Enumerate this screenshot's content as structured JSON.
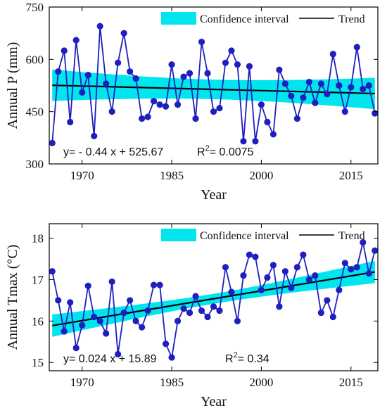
{
  "colors": {
    "series": "#1f1fbf",
    "confidence": "#00e5ee",
    "trend": "#000000"
  },
  "chart_data": [
    {
      "type": "line",
      "title": "",
      "xlabel": "Year",
      "ylabel": "Annual P (mm)",
      "xlim": [
        1964.5,
        2019.5
      ],
      "ylim": [
        300,
        750
      ],
      "xticks": [
        1970,
        1985,
        2000,
        2015
      ],
      "yticks": [
        300,
        450,
        600,
        750
      ],
      "grid": false,
      "legend_position": "top-right",
      "legend": {
        "confidence_label": "Confidence interval",
        "trend_label": "Trend"
      },
      "equation": "y= - 0.44 x + 525.67",
      "r2_label": "R",
      "r2_sup": "2",
      "r2_value": "= 0.0075",
      "trend": {
        "slope": -0.44,
        "intercept": 525.67,
        "x0": 1965
      },
      "ci_half_width": {
        "center": 28,
        "ends": 45
      },
      "series": [
        {
          "x": [
            1965,
            1966,
            1967,
            1968,
            1969,
            1970,
            1971,
            1972,
            1973,
            1974,
            1975,
            1976,
            1977,
            1978,
            1979,
            1980,
            1981,
            1982,
            1983,
            1984,
            1985,
            1986,
            1987,
            1988,
            1989,
            1990,
            1991,
            1992,
            1993,
            1994,
            1995,
            1996,
            1997,
            1998,
            1999,
            2000,
            2001,
            2002,
            2003,
            2004,
            2005,
            2006,
            2007,
            2008,
            2009,
            2010,
            2011,
            2012,
            2013,
            2014,
            2015,
            2016,
            2017,
            2018,
            2019
          ],
          "values": [
            360,
            565,
            625,
            420,
            655,
            505,
            555,
            380,
            695,
            530,
            450,
            590,
            675,
            565,
            545,
            430,
            435,
            480,
            470,
            465,
            585,
            470,
            550,
            560,
            430,
            650,
            560,
            450,
            460,
            590,
            625,
            585,
            365,
            580,
            365,
            470,
            420,
            385,
            570,
            530,
            495,
            430,
            490,
            535,
            475,
            530,
            500,
            615,
            525,
            450,
            520,
            635,
            515,
            525,
            445
          ]
        }
      ]
    },
    {
      "type": "line",
      "title": "",
      "xlabel": "Year",
      "ylabel": "Annual Tmax (°C)",
      "xlim": [
        1964.5,
        2019.5
      ],
      "ylim": [
        14.8,
        18.35
      ],
      "xticks": [
        1970,
        1985,
        2000,
        2015
      ],
      "yticks": [
        15,
        16,
        17,
        18
      ],
      "grid": false,
      "legend_position": "top-right",
      "legend": {
        "confidence_label": "Confidence interval",
        "trend_label": "Trend"
      },
      "equation": "y= 0.024 x + 15.89",
      "r2_label": "R",
      "r2_sup": "2",
      "r2_value": "= 0.34",
      "trend": {
        "slope": 0.024,
        "intercept": 15.89,
        "x0": 1965
      },
      "ci_half_width": {
        "center": 0.12,
        "ends": 0.27
      },
      "series": [
        {
          "x": [
            1965,
            1966,
            1967,
            1968,
            1969,
            1970,
            1971,
            1972,
            1973,
            1974,
            1975,
            1976,
            1977,
            1978,
            1979,
            1980,
            1981,
            1982,
            1983,
            1984,
            1985,
            1986,
            1987,
            1988,
            1989,
            1990,
            1991,
            1992,
            1993,
            1994,
            1995,
            1996,
            1997,
            1998,
            1999,
            2000,
            2001,
            2002,
            2003,
            2004,
            2005,
            2006,
            2007,
            2008,
            2009,
            2010,
            2011,
            2012,
            2013,
            2014,
            2015,
            2016,
            2017,
            2018,
            2019
          ],
          "values": [
            17.2,
            16.5,
            15.75,
            16.45,
            15.35,
            15.9,
            16.85,
            16.1,
            16.0,
            15.7,
            16.95,
            15.2,
            16.2,
            16.5,
            16.0,
            15.85,
            16.25,
            16.87,
            16.87,
            15.45,
            15.12,
            16.0,
            16.3,
            16.2,
            16.6,
            16.25,
            16.1,
            16.35,
            16.25,
            17.3,
            16.7,
            16.0,
            17.1,
            17.6,
            17.55,
            16.75,
            17.05,
            17.35,
            16.35,
            17.2,
            16.8,
            17.3,
            17.6,
            17.0,
            17.1,
            16.2,
            16.5,
            16.1,
            16.75,
            17.4,
            17.25,
            17.3,
            17.9,
            17.15,
            17.7
          ]
        }
      ]
    }
  ]
}
